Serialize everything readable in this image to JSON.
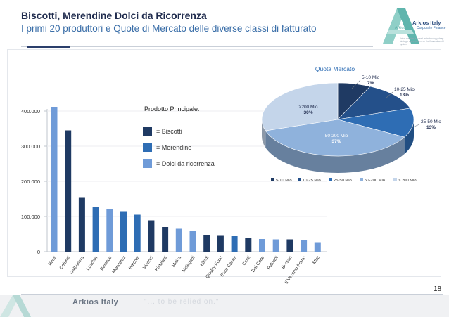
{
  "header": {
    "title": "Biscotti, Merendine Dolci da Ricorrenza",
    "subtitle": "I primi 20 produttori e Quote di Mercato delle diverse classi di fatturato"
  },
  "logo": {
    "name": "Arkios Italy",
    "sub": "Corporate Finance",
    "mini": "Arkios",
    "tagline": "Value creation is based on technology, deep strategic and excellent on the financial world system"
  },
  "colors": {
    "biscotti": "#1f3a63",
    "merendine": "#2e6db4",
    "dolci": "#6f9bd8",
    "pie": [
      "#1f3a63",
      "#24508a",
      "#2e6db4",
      "#8fb2dc",
      "#c4d5ea"
    ]
  },
  "legend": {
    "title": "Prodotto Principale:",
    "items": [
      {
        "label": "= Biscotti",
        "key": "biscotti"
      },
      {
        "label": "= Merendine",
        "key": "merendine"
      },
      {
        "label": "= Dolci da ricorrenza",
        "key": "dolci"
      }
    ]
  },
  "chart_data": [
    {
      "type": "bar",
      "categories": [
        "Bauli",
        "Colussi",
        "Galbusera",
        "Loacker",
        "Balocco",
        "Mondelez",
        "Balconi",
        "Vicenzi",
        "Bistefani",
        "Maina",
        "Melegatti",
        "Elledi",
        "Quality Food",
        "Euro Cakes",
        "Cindi",
        "Dal Colle",
        "Paluani",
        "Borsari",
        "Il Vecchio Forno",
        "Muti"
      ],
      "values": [
        412000,
        345000,
        155000,
        128000,
        122000,
        115000,
        105000,
        89000,
        70000,
        65000,
        58000,
        48000,
        45000,
        44000,
        38000,
        36000,
        35000,
        35000,
        34000,
        25000
      ],
      "product": [
        "dolci",
        "biscotti",
        "biscotti",
        "merendine",
        "dolci",
        "merendine",
        "merendine",
        "biscotti",
        "biscotti",
        "dolci",
        "dolci",
        "biscotti",
        "biscotti",
        "merendine",
        "biscotti",
        "dolci",
        "dolci",
        "biscotti",
        "dolci",
        "dolci"
      ],
      "yticks": [
        "0",
        "100.000",
        "200.000",
        "300.000",
        "400.000"
      ],
      "ylim": [
        0,
        450000
      ],
      "grid": true
    },
    {
      "type": "pie",
      "title": "Quota Mercato",
      "slices": [
        {
          "name": "5-10 Mio",
          "value": 7,
          "label": "7%"
        },
        {
          "name": "10-25 Mio",
          "value": 13,
          "label": "13%"
        },
        {
          "name": "25-50 Mio",
          "value": 13,
          "label": "13%"
        },
        {
          "name": "50-200 Mio",
          "value": 37,
          "label": "37%"
        },
        {
          "name": ">200 Mio",
          "value": 30,
          "label": "30%"
        }
      ],
      "legend": [
        "5-10 Mio",
        "10-25 Mio",
        "25-50 Mio",
        "50-200 Mio",
        "> 200 Mio"
      ],
      "legend_position": "bottom"
    }
  ],
  "footer": {
    "page": "18",
    "name": "Arkios Italy",
    "motto": "\"... to be relied on.\""
  }
}
